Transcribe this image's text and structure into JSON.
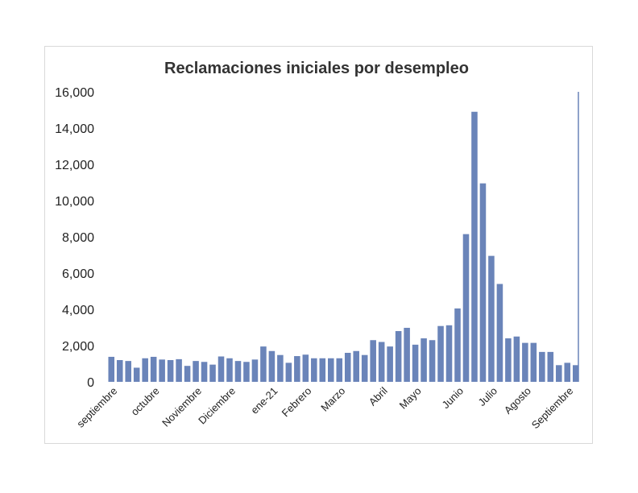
{
  "chart_data": {
    "type": "bar",
    "title": "Reclamaciones iniciales por desempleo",
    "xlabel": "",
    "ylabel": "",
    "ylim": [
      0,
      16000
    ],
    "yticks": [
      0,
      2000,
      4000,
      6000,
      8000,
      10000,
      12000,
      14000,
      16000
    ],
    "ytick_labels": [
      "0",
      "2,000",
      "4,000",
      "6,000",
      "8,000",
      "10,000",
      "12,000",
      "14,000",
      "16,000"
    ],
    "month_labels": [
      {
        "label": "septiembre",
        "index": 0
      },
      {
        "label": "octubre",
        "index": 5
      },
      {
        "label": "Noviembre",
        "index": 10
      },
      {
        "label": "Diciembre",
        "index": 14
      },
      {
        "label": "ene-21",
        "index": 19
      },
      {
        "label": "Febrero",
        "index": 23
      },
      {
        "label": "Marzo",
        "index": 27
      },
      {
        "label": "Abril",
        "index": 32
      },
      {
        "label": "Mayo",
        "index": 36
      },
      {
        "label": "Junio",
        "index": 41
      },
      {
        "label": "Julio",
        "index": 45
      },
      {
        "label": "Agosto",
        "index": 49
      },
      {
        "label": "Septiembre",
        "index": 54
      }
    ],
    "values": [
      1380,
      1200,
      1150,
      780,
      1300,
      1380,
      1230,
      1200,
      1250,
      880,
      1150,
      1100,
      950,
      1400,
      1300,
      1150,
      1100,
      1230,
      1950,
      1700,
      1480,
      1050,
      1420,
      1500,
      1300,
      1300,
      1300,
      1300,
      1600,
      1700,
      1480,
      2300,
      2200,
      1950,
      2800,
      2980,
      2050,
      2400,
      2300,
      3080,
      3120,
      4050,
      8150,
      14900,
      10950,
      6950,
      5400,
      2400,
      2500,
      2150,
      2150,
      1650,
      1650,
      920,
      1050,
      920
    ],
    "bar_color": "#6a84b9",
    "grid": false,
    "legend": "none"
  }
}
